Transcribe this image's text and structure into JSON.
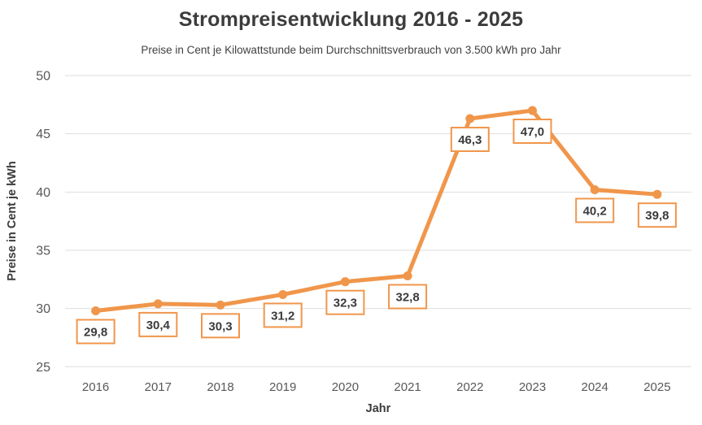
{
  "header": {
    "title": "Strompreisentwicklung 2016 - 2025",
    "subtitle": "Preise in Cent je Kilowattstunde beim Durchschnittsverbrauch von 3.500 kWh pro Jahr"
  },
  "chart_data": {
    "type": "line",
    "title": "Strompreisentwicklung 2016 - 2025",
    "subtitle": "Preise in Cent je Kilowattstunde beim Durchschnittsverbrauch von 3.500 kWh pro Jahr",
    "xlabel": "Jahr",
    "ylabel": "Preise in Cent je kWh",
    "categories": [
      "2016",
      "2017",
      "2018",
      "2019",
      "2020",
      "2021",
      "2022",
      "2023",
      "2024",
      "2025"
    ],
    "values": [
      29.8,
      30.4,
      30.3,
      31.2,
      32.3,
      32.8,
      46.3,
      47.0,
      40.2,
      39.8
    ],
    "value_labels": [
      "29,8",
      "30,4",
      "30,3",
      "31,2",
      "32,3",
      "32,8",
      "46,3",
      "47,0",
      "40,2",
      "39,8"
    ],
    "ylim": [
      25,
      50
    ],
    "yticks": [
      25,
      30,
      35,
      40,
      45,
      50
    ],
    "ytick_labels": [
      "25",
      "30",
      "35",
      "40",
      "45",
      "50"
    ],
    "grid": "horizontal-gridlines-only",
    "legend": "none",
    "colors": {
      "line": "#F0964B",
      "marker": "#F0964B",
      "label_border": "#F0964B",
      "label_fill": "#FFFFFF",
      "label_text": "#3B3B3B",
      "gridline": "#DEDEDE",
      "tick_text": "#58585A",
      "title_text": "#3C3C3C",
      "background": "#FFFFFF"
    }
  }
}
